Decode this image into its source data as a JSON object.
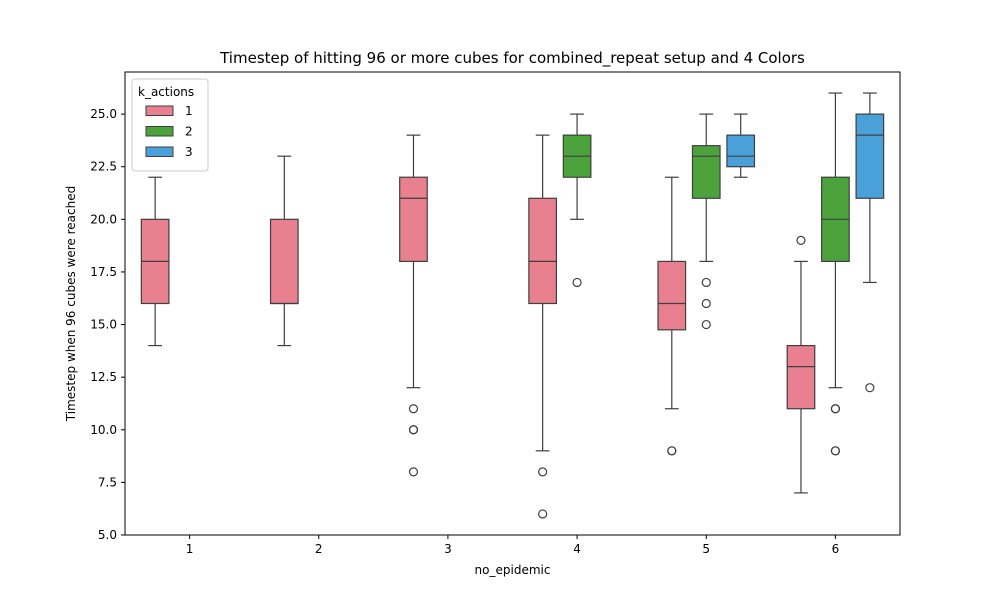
{
  "chart_data": {
    "type": "box",
    "title": "Timestep of hitting 96 or more cubes for combined_repeat setup and 4 Colors",
    "xlabel": "no_epidemic",
    "ylabel": "Timestep when 96 cubes were reached",
    "categories": [
      "1",
      "2",
      "3",
      "4",
      "5",
      "6"
    ],
    "ylim": [
      5.0,
      27.0
    ],
    "yticks": [
      "5.0",
      "7.5",
      "10.0",
      "12.5",
      "15.0",
      "17.5",
      "20.0",
      "22.5",
      "25.0"
    ],
    "grid": false,
    "legend": {
      "title": "k_actions",
      "placement": "top-left"
    },
    "series": [
      {
        "name": "1",
        "color": "#e8808f",
        "boxes": [
          {
            "category": "1",
            "whisker_low": 14,
            "q1": 16,
            "median": 18,
            "q3": 20,
            "whisker_high": 22,
            "outliers": []
          },
          {
            "category": "2",
            "whisker_low": 14,
            "q1": 16,
            "median": 16,
            "q3": 20,
            "whisker_high": 23,
            "outliers": []
          },
          {
            "category": "3",
            "whisker_low": 12,
            "q1": 18,
            "median": 21,
            "q3": 22,
            "whisker_high": 24,
            "outliers": [
              11,
              10,
              10,
              8
            ]
          },
          {
            "category": "4",
            "whisker_low": 9,
            "q1": 16,
            "median": 18,
            "q3": 21,
            "whisker_high": 24,
            "outliers": [
              8,
              6
            ]
          },
          {
            "category": "5",
            "whisker_low": 11,
            "q1": 14.75,
            "median": 16,
            "q3": 18,
            "whisker_high": 22,
            "outliers": [
              9,
              9
            ]
          },
          {
            "category": "6",
            "whisker_low": 7,
            "q1": 11,
            "median": 13,
            "q3": 14,
            "whisker_high": 18,
            "outliers": [
              19
            ]
          }
        ]
      },
      {
        "name": "2",
        "color": "#4ca33b",
        "boxes": [
          {
            "category": "4",
            "whisker_low": 20,
            "q1": 22,
            "median": 23,
            "q3": 24,
            "whisker_high": 25,
            "outliers": [
              17
            ]
          },
          {
            "category": "5",
            "whisker_low": 18,
            "q1": 21,
            "median": 23,
            "q3": 23.5,
            "whisker_high": 25,
            "outliers": [
              17,
              16,
              15
            ]
          },
          {
            "category": "6",
            "whisker_low": 12,
            "q1": 18,
            "median": 20,
            "q3": 22,
            "whisker_high": 26,
            "outliers": [
              11,
              11,
              9,
              9
            ]
          }
        ]
      },
      {
        "name": "3",
        "color": "#4aa0d9",
        "boxes": [
          {
            "category": "5",
            "whisker_low": 22,
            "q1": 22.5,
            "median": 23,
            "q3": 24,
            "whisker_high": 25,
            "outliers": []
          },
          {
            "category": "6",
            "whisker_low": 17,
            "q1": 21,
            "median": 24,
            "q3": 25,
            "whisker_high": 26,
            "outliers": [
              12
            ]
          }
        ]
      }
    ]
  }
}
